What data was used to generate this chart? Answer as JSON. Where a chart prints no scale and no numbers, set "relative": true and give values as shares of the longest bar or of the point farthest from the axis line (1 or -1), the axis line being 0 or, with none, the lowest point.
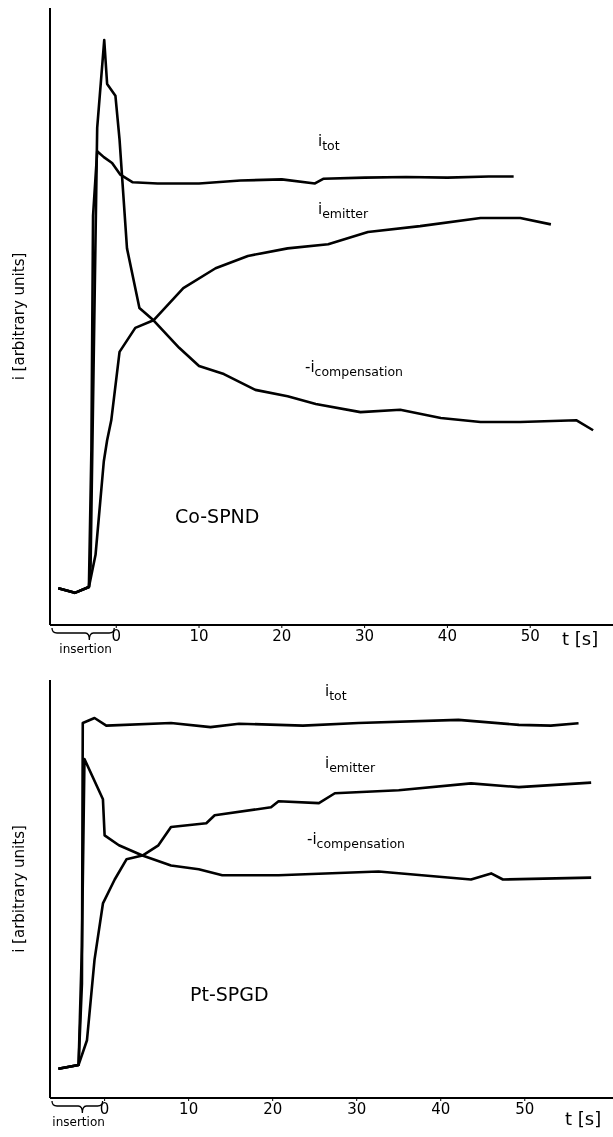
{
  "chart_data": [
    {
      "type": "line",
      "title": "Co-SPND",
      "xlabel": "t [s]",
      "ylabel": "i [arbitrary units]",
      "relative": true,
      "xlim": [
        -8,
        60
      ],
      "xticks": [
        0,
        10,
        20,
        30,
        40,
        50
      ],
      "tick_labels": "x",
      "marker": "none",
      "line_style": "solid",
      "annotations": [
        "insertion"
      ],
      "series": [
        {
          "name": "i$_{tot}$",
          "color": "#000000",
          "x": [
            -7,
            -5,
            -3.3,
            -3,
            -2.8,
            -2.3,
            -1.5,
            -0.5,
            0.5,
            2,
            5,
            10,
            15,
            20,
            24,
            25,
            30,
            35,
            40,
            45,
            48
          ],
          "values": [
            0.063,
            0.055,
            0.065,
            0.3,
            0.7,
            0.81,
            0.8,
            0.79,
            0.77,
            0.757,
            0.755,
            0.755,
            0.76,
            0.762,
            0.755,
            0.763,
            0.765,
            0.766,
            0.765,
            0.767,
            0.767
          ]
        },
        {
          "name": "i$_{emitter}$",
          "color": "#000000",
          "x": [
            -7,
            -5,
            -3.3,
            -2.5,
            -2,
            -1.5,
            -1.1,
            -0.6,
            0.4,
            2.3,
            4.5,
            8.1,
            12,
            15.9,
            20.7,
            25.6,
            30.4,
            36.7,
            44,
            48.8,
            52.5
          ],
          "values": [
            0.063,
            0.055,
            0.065,
            0.12,
            0.2,
            0.28,
            0.316,
            0.35,
            0.467,
            0.508,
            0.521,
            0.576,
            0.61,
            0.631,
            0.644,
            0.651,
            0.672,
            0.682,
            0.696,
            0.696,
            0.685
          ]
        },
        {
          "name": "-i$_{compensation}$",
          "color": "#000000",
          "x": [
            -7,
            -5,
            -3.3,
            -3.1,
            -2.3,
            -1.45,
            -1.1,
            -0.1,
            0.4,
            1.3,
            2.8,
            4.5,
            7.6,
            10,
            13,
            16.8,
            20.7,
            24.1,
            29.5,
            34.3,
            39.2,
            44,
            48.8,
            55.6,
            57.6
          ],
          "values": [
            0.063,
            0.055,
            0.065,
            0.1,
            0.85,
            1,
            0.925,
            0.905,
            0.83,
            0.644,
            0.542,
            0.521,
            0.474,
            0.443,
            0.429,
            0.402,
            0.391,
            0.378,
            0.364,
            0.368,
            0.354,
            0.347,
            0.347,
            0.35,
            0.333
          ]
        }
      ]
    },
    {
      "type": "line",
      "title": "Pt-SPGD",
      "xlabel": "t [s]",
      "ylabel": "i [arbitrary units]",
      "relative": true,
      "xlim": [
        -6.5,
        60.5
      ],
      "xticks": [
        0,
        10,
        20,
        30,
        40,
        50
      ],
      "tick_labels": "x",
      "marker": "none",
      "line_style": "solid",
      "annotations": [
        "insertion"
      ],
      "series": [
        {
          "name": "i$_{tot}$",
          "color": "#000000",
          "x": [
            -5.5,
            -3.1,
            -2.7,
            -2.6,
            -1.2,
            0.2,
            7.9,
            12.6,
            16,
            23.6,
            30.2,
            42.1,
            49.3,
            53.1,
            56.4
          ],
          "values": [
            0.077,
            0.087,
            0.3,
            0.987,
            1,
            0.98,
            0.987,
            0.976,
            0.985,
            0.98,
            0.987,
            0.995,
            0.982,
            0.98,
            0.986
          ]
        },
        {
          "name": "i$_{emitter}$",
          "color": "#000000",
          "x": [
            -5.5,
            -3.1,
            -2.1,
            -1.2,
            -0.2,
            1.2,
            2.6,
            4.5,
            6.4,
            7.9,
            12.1,
            13.1,
            19.8,
            20.7,
            25.5,
            27.4,
            35,
            43.6,
            49.3,
            57.9
          ],
          "values": [
            0.077,
            0.087,
            0.152,
            0.364,
            0.512,
            0.575,
            0.628,
            0.638,
            0.665,
            0.713,
            0.723,
            0.744,
            0.765,
            0.781,
            0.776,
            0.802,
            0.81,
            0.828,
            0.818,
            0.83
          ]
        },
        {
          "name": "-i$_{compensation}$",
          "color": "#000000",
          "x": [
            -5.5,
            -3.1,
            -2.7,
            -2.4,
            -0.2,
            0,
            1.7,
            4.5,
            7.9,
            11.2,
            14,
            20.7,
            32.6,
            43.6,
            46,
            47.4,
            57.9
          ],
          "values": [
            0.077,
            0.087,
            0.4,
            0.892,
            0.786,
            0.691,
            0.665,
            0.638,
            0.612,
            0.602,
            0.586,
            0.586,
            0.596,
            0.575,
            0.591,
            0.575,
            0.58
          ]
        }
      ]
    }
  ]
}
